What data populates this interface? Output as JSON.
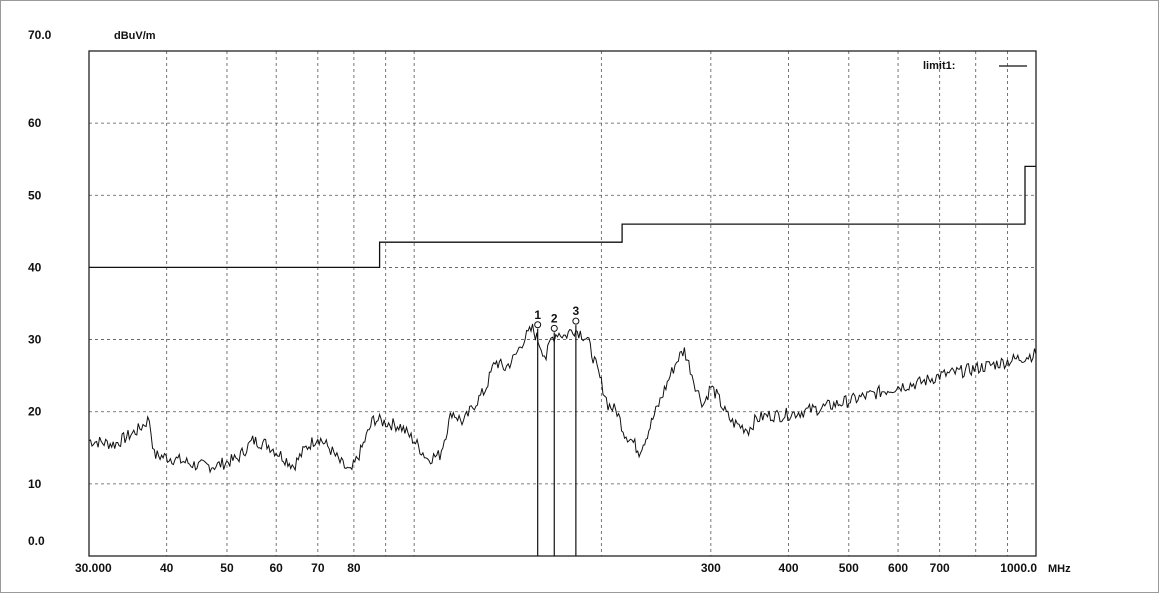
{
  "chart_data": {
    "type": "line",
    "title": "",
    "ylabel": "dBuV/m",
    "xunit": "MHz",
    "xscale": "log",
    "xlim": [
      30,
      1000
    ],
    "ylim": [
      0,
      70
    ],
    "grid": true,
    "legend_placement": "top-right",
    "ytick_labels": [
      {
        "v": 70,
        "t": "70.0"
      },
      {
        "v": 60,
        "t": "60"
      },
      {
        "v": 50,
        "t": "50"
      },
      {
        "v": 40,
        "t": "40"
      },
      {
        "v": 30,
        "t": "30"
      },
      {
        "v": 20,
        "t": "20"
      },
      {
        "v": 10,
        "t": "10"
      },
      {
        "v": 0,
        "t": "0.0"
      }
    ],
    "xtick_labels": [
      {
        "v": 30,
        "t": "30.000"
      },
      {
        "v": 40,
        "t": "40"
      },
      {
        "v": 50,
        "t": "50"
      },
      {
        "v": 60,
        "t": "60"
      },
      {
        "v": 70,
        "t": "70"
      },
      {
        "v": 80,
        "t": "80"
      },
      {
        "v": 300,
        "t": "300"
      },
      {
        "v": 400,
        "t": "400"
      },
      {
        "v": 500,
        "t": "500"
      },
      {
        "v": 600,
        "t": "600"
      },
      {
        "v": 700,
        "t": "700"
      },
      {
        "v": 1000,
        "t": "1000.0"
      }
    ],
    "minor_x_grid": [
      90,
      100,
      200,
      800,
      900
    ],
    "limit": {
      "name": "limit1:",
      "points": [
        [
          30,
          40
        ],
        [
          88,
          40
        ],
        [
          88,
          43.5
        ],
        [
          216,
          43.5
        ],
        [
          216,
          46
        ],
        [
          960,
          46
        ],
        [
          960,
          54
        ],
        [
          1000,
          54
        ]
      ]
    },
    "trace": {
      "points": [
        [
          30,
          16
        ],
        [
          33,
          15.5
        ],
        [
          36,
          17.5
        ],
        [
          37.5,
          19
        ],
        [
          38.2,
          14
        ],
        [
          41,
          13.5
        ],
        [
          45,
          12.5
        ],
        [
          48,
          12.5
        ],
        [
          52,
          13.5
        ],
        [
          55,
          16
        ],
        [
          58,
          15.5
        ],
        [
          61,
          14
        ],
        [
          64,
          12.5
        ],
        [
          67,
          15
        ],
        [
          70,
          16.5
        ],
        [
          73,
          15
        ],
        [
          76,
          13
        ],
        [
          79,
          11.5
        ],
        [
          82,
          14.5
        ],
        [
          86,
          19
        ],
        [
          90,
          18.5
        ],
        [
          95,
          18
        ],
        [
          100,
          16
        ],
        [
          105,
          13.5
        ],
        [
          110,
          14
        ],
        [
          115,
          20
        ],
        [
          120,
          18.5
        ],
        [
          125,
          21
        ],
        [
          130,
          23
        ],
        [
          135,
          27
        ],
        [
          140,
          26
        ],
        [
          145,
          27.5
        ],
        [
          150,
          30
        ],
        [
          155,
          31.5
        ],
        [
          160,
          29
        ],
        [
          163,
          27.5
        ],
        [
          166,
          30
        ],
        [
          170,
          31
        ],
        [
          175,
          30.5
        ],
        [
          180,
          31.5
        ],
        [
          185,
          31
        ],
        [
          190,
          30
        ],
        [
          195,
          27
        ],
        [
          200,
          24
        ],
        [
          205,
          21
        ],
        [
          212,
          20
        ],
        [
          218,
          17
        ],
        [
          224,
          16
        ],
        [
          230,
          14.5
        ],
        [
          236,
          16.5
        ],
        [
          242,
          19
        ],
        [
          250,
          22
        ],
        [
          258,
          25
        ],
        [
          266,
          27.5
        ],
        [
          272,
          28.5
        ],
        [
          278,
          26
        ],
        [
          285,
          23
        ],
        [
          292,
          21
        ],
        [
          300,
          23.5
        ],
        [
          308,
          22
        ],
        [
          316,
          20
        ],
        [
          325,
          18.5
        ],
        [
          335,
          18
        ],
        [
          345,
          17.5
        ],
        [
          355,
          19
        ],
        [
          370,
          19.5
        ],
        [
          390,
          19.5
        ],
        [
          420,
          20
        ],
        [
          450,
          20.5
        ],
        [
          500,
          21.5
        ],
        [
          550,
          22.5
        ],
        [
          600,
          23.5
        ],
        [
          650,
          24
        ],
        [
          700,
          25
        ],
        [
          750,
          25.5
        ],
        [
          800,
          26
        ],
        [
          850,
          26.5
        ],
        [
          900,
          27
        ],
        [
          950,
          27.5
        ],
        [
          1000,
          28
        ]
      ]
    },
    "markers": [
      {
        "label": "1",
        "freq": 158,
        "level": 31.5
      },
      {
        "label": "2",
        "freq": 168,
        "level": 31
      },
      {
        "label": "3",
        "freq": 182,
        "level": 32
      }
    ]
  }
}
